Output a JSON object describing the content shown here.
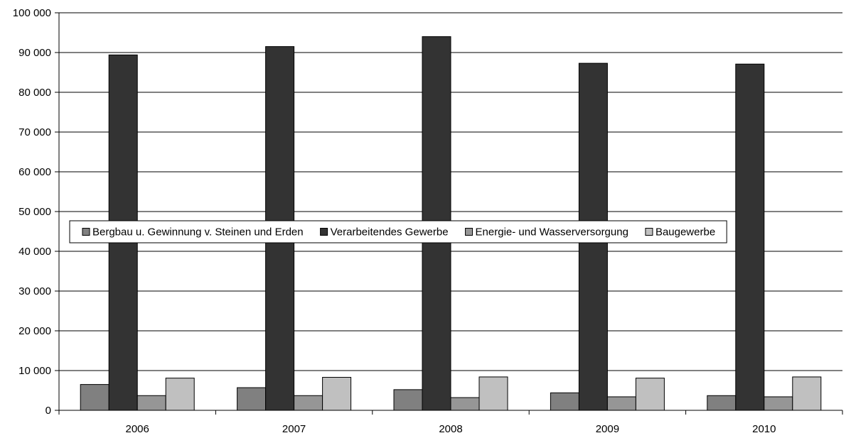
{
  "chart_data": {
    "type": "bar",
    "categories": [
      "2006",
      "2007",
      "2008",
      "2009",
      "2010"
    ],
    "series": [
      {
        "name": "Bergbau u. Gewinnung v. Steinen und Erden",
        "color": "#808080",
        "values": [
          6500,
          5700,
          5200,
          4400,
          3700
        ]
      },
      {
        "name": "Verarbeitendes Gewerbe",
        "color": "#333333",
        "values": [
          89400,
          91500,
          94000,
          87300,
          87100
        ]
      },
      {
        "name": "Energie- und Wasserversorgung",
        "color": "#969696",
        "values": [
          3700,
          3700,
          3200,
          3400,
          3400
        ]
      },
      {
        "name": "Baugewerbe",
        "color": "#c0c0c0",
        "values": [
          8100,
          8300,
          8400,
          8100,
          8400
        ]
      }
    ],
    "y_ticks": [
      "0",
      "10 000",
      "20 000",
      "30 000",
      "40 000",
      "50 000",
      "60 000",
      "70 000",
      "80 000",
      "90 000",
      "100 000"
    ],
    "ylim": [
      0,
      100000
    ],
    "grid": true,
    "legend": "inside-middle"
  }
}
